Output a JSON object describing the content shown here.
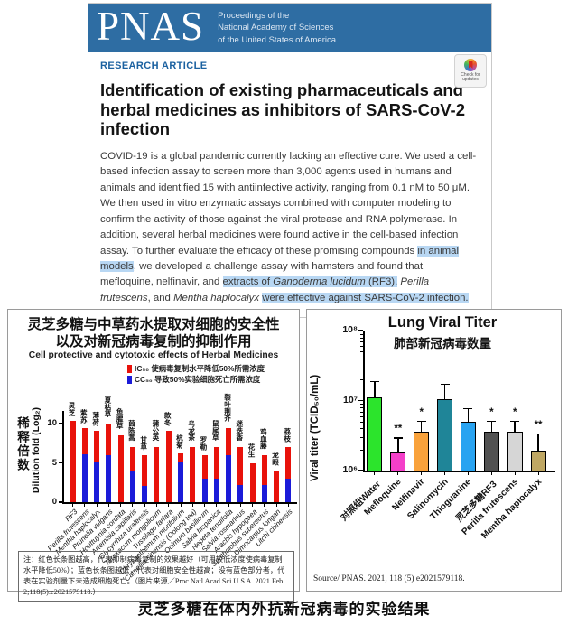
{
  "paper": {
    "journal_wordmark": "PNAS",
    "journal_name_lines": [
      "Proceedings of the",
      "National Academy of Sciences",
      "of the United States of America"
    ],
    "kicker": "RESEARCH ARTICLE",
    "check_updates_label": "Check for updates",
    "title": "Identification of existing pharmaceuticals and herbal medicines as inhibitors of SARS-CoV-2 infection",
    "abstract_segments": [
      {
        "text": "COVID-19 is a global pandemic currently lacking an effective cure. We used a cell-based infection assay to screen more than 3,000 agents used in humans and animals and identified 15 with antiinfective activity, ranging from 0.1 nM to 50 μM. We then used in vitro enzymatic assays combined with computer modeling to confirm the activity of those against the viral protease and RNA polymerase. In addition, several herbal medicines were found active in the cell-based infection assay. To further evaluate the efficacy of these promising compounds "
      },
      {
        "text": "in animal models",
        "highlight": true
      },
      {
        "text": ", we developed a challenge assay with hamsters and found that mefloquine, nelfinavir, and "
      },
      {
        "text": "extracts of ",
        "highlight": true
      },
      {
        "text": "Ganoderma lucidum",
        "highlight": true,
        "italic": true
      },
      {
        "text": " (RF3),",
        "highlight": true
      },
      {
        "text": " "
      },
      {
        "text": "Perilla frutescens",
        "italic": true
      },
      {
        "text": ", and "
      },
      {
        "text": "Mentha haplocalyx",
        "italic": true
      },
      {
        "text": " "
      },
      {
        "text": "were effective against SARS-CoV-2 infection.",
        "highlight": true
      }
    ]
  },
  "caption": "灵芝多糖在体内外抗新冠病毒的实验结果",
  "chart_data": [
    {
      "type": "bar",
      "stacked": true,
      "title_cn": [
        "灵芝多糖与中草药水提取对细胞的安全性",
        "以及对新冠病毒复制的抑制作用"
      ],
      "subtitle": "Cell protective and cytotoxic effects of Herbal Medicines",
      "legend": [
        {
          "color": "#e8120b",
          "label": "IC₅₀ 使病毒复制水平降低50%所需浓度"
        },
        {
          "color": "#1b1bd8",
          "label": "CC₅₀ 导致50%实验细胞死亡所需浓度"
        }
      ],
      "ylabel_cn": "稀释倍数",
      "ylabel": "Dilution fold (Log₂)",
      "yticks": [
        0,
        5,
        10
      ],
      "ylim": [
        0,
        11.6
      ],
      "grid": false,
      "categories": [
        "RF3",
        "Perilla frutescens",
        "Mentha haplocalyx",
        "Prunella vulgaris",
        "Houttuynia cordata",
        "Artemisia capillaris",
        "Glycyrrhiza uralensis",
        "Taraxacum mongolicum",
        "Tussilago farfara",
        "Chrysanthemum morifolium",
        "Camellia sinensis  (Oolong tea)",
        "Ocimum basilicum",
        "Salvia hispanica",
        "Nepeta tenuifolia",
        "Salvia rosmarinus",
        "Arachis hypogaea",
        "Spatholobus suberectus",
        "Dimocarpus longan",
        "Litchi chinensis"
      ],
      "categories_cn": [
        "灵芝",
        "紫苏",
        "薄荷",
        "夏枯草",
        "鱼腥草",
        "茵陈蒿",
        "甘草",
        "蒲公英",
        "款冬",
        "杭菊",
        "乌龙茶",
        "罗勒",
        "鼠尾草",
        "裂叶荆芥",
        "迷迭香",
        "花生",
        "鸡血藤",
        "龙眼",
        "荔枝"
      ],
      "series": [
        {
          "name": "IC₅₀ total (red, log₂ dilution fold)",
          "values": [
            10.3,
            9.4,
            9.1,
            10.0,
            8.5,
            7.0,
            6.0,
            7.0,
            9.1,
            6.2,
            7.0,
            6.0,
            7.0,
            9.4,
            7.0,
            5.0,
            6.0,
            4.0,
            7.0
          ]
        },
        {
          "name": "CC₅₀ (blue bottom segment, log₂ dilution fold)",
          "values": [
            0,
            6.1,
            5.1,
            6.0,
            0,
            4.0,
            2.1,
            0,
            0,
            5.2,
            0,
            3.0,
            3.0,
            6.0,
            2.2,
            0,
            2.2,
            0,
            3.0
          ]
        }
      ],
      "note": "注：红色长条图越高，代表抑制病毒复制的效果越好（可用较低浓度使病毒复制水平降低50%）；蓝色长条图越低，代表对细胞安全性越高；没有蓝色部分者，代表在实验剂量下未造成细胞死亡。（图片来源／Proc Natl Acad Sci U S A. 2021 Feb 2;118(5):e2021579118.）"
    },
    {
      "type": "bar",
      "scale": "log10",
      "title": "Lung Viral Titer",
      "subtitle_cn": "肺部新冠病毒数量",
      "ylabel": "Viral titer (TCID₅₀/mL)",
      "yticks": [
        "10⁶",
        "10⁷",
        "10⁸"
      ],
      "ylim": [
        1000000.0,
        100000000.0
      ],
      "grid": false,
      "categories": [
        "对照组Water",
        "Mefloquine",
        "Nelfinavir",
        "Salinomycin",
        "Thioguanine",
        "灵芝多糖RF3",
        "Perilla frutescens",
        "Mentha haplocalyx"
      ],
      "values": [
        11000000.0,
        1800000.0,
        3600000.0,
        10500000.0,
        5000000.0,
        3600000.0,
        3600000.0,
        1900000.0
      ],
      "error_top": [
        19000000.0,
        3000000.0,
        5200000.0,
        17500000.0,
        7800000.0,
        5200000.0,
        5200000.0,
        3400000.0
      ],
      "significance": [
        "",
        "**",
        "*",
        "",
        "",
        "*",
        "*",
        "**"
      ],
      "bar_colors": [
        "#2ce42c",
        "#f43fc9",
        "#f9a23b",
        "#1f8598",
        "#28a3f1",
        "#515151",
        "#d6d6d6",
        "#bfa763"
      ],
      "source": "Source/ PNAS. 2021, 118 (5) e2021579118."
    }
  ]
}
